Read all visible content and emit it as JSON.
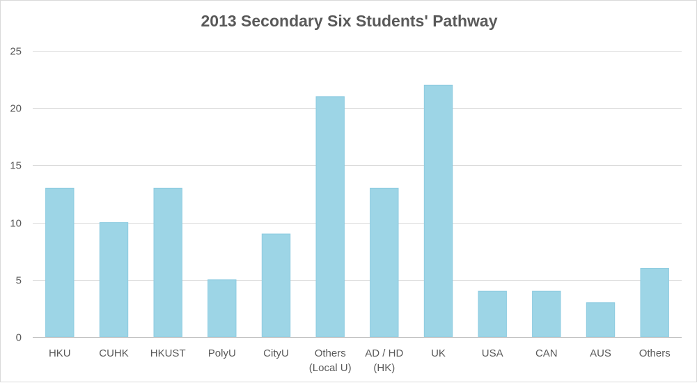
{
  "chart_data": {
    "type": "bar",
    "title": "2013 Secondary Six Students' Pathway",
    "xlabel": "",
    "ylabel": "",
    "categories": [
      "HKU",
      "CUHK",
      "HKUST",
      "PolyU",
      "CityU",
      "Others\n(Local U)",
      "AD / HD\n(HK)",
      "UK",
      "USA",
      "CAN",
      "AUS",
      "Others"
    ],
    "values": [
      13,
      10,
      13,
      5,
      9,
      21,
      13,
      22,
      4,
      4,
      3,
      6
    ],
    "ylim": [
      0,
      25
    ],
    "yticks": [
      0,
      5,
      10,
      15,
      20,
      25
    ],
    "grid": true,
    "legend": "none",
    "colors": {
      "bar": "#9dd5e6",
      "bar_edge": "#8ccbe0",
      "grid": "#d9d9d9",
      "axis": "#bfbfbf",
      "text": "#595959"
    }
  }
}
